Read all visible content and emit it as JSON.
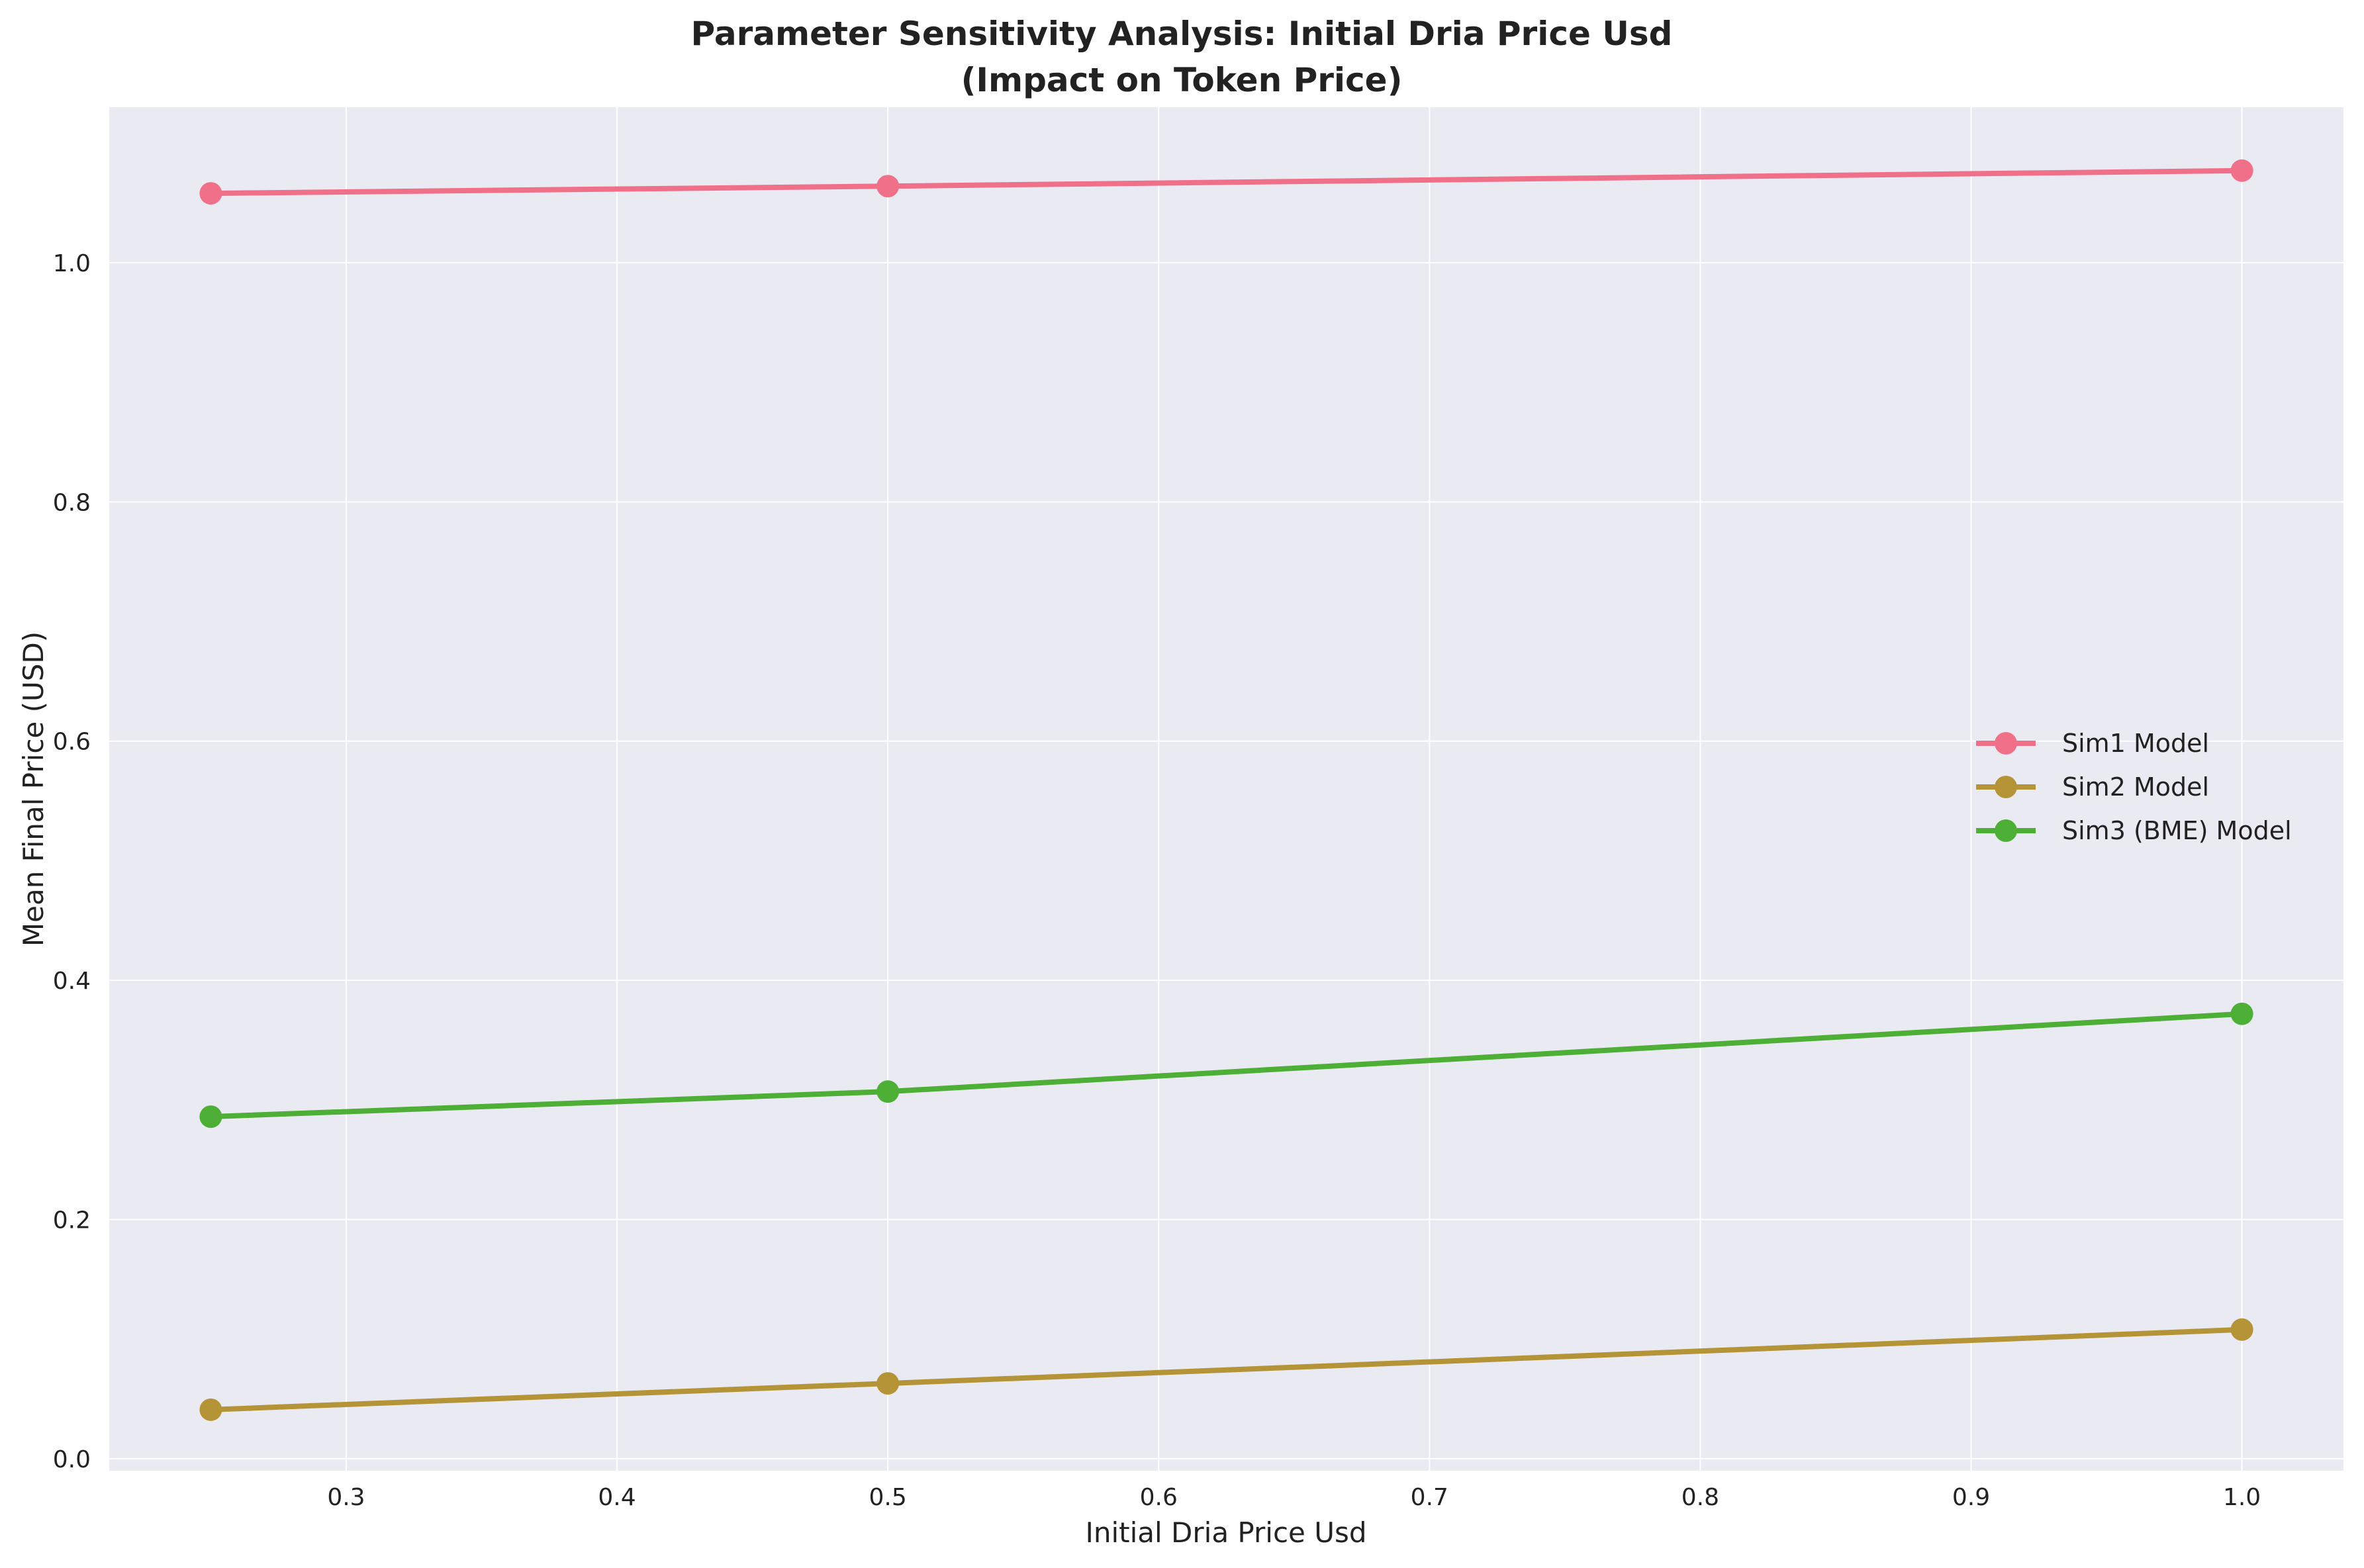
{
  "chart_data": {
    "type": "line",
    "title": "Parameter Sensitivity Analysis: Initial Dria Price Usd",
    "subtitle": "(Impact on Token Price)",
    "xlabel": "Initial Dria Price Usd",
    "ylabel": "Mean Final Price (USD)",
    "x": [
      0.25,
      0.5,
      1.0
    ],
    "xlim": [
      0.2125,
      1.0375
    ],
    "ylim": [
      -0.01,
      1.13
    ],
    "xticks": [
      "0.3",
      "0.4",
      "0.5",
      "0.6",
      "0.7",
      "0.8",
      "0.9",
      "1.0"
    ],
    "yticks": [
      "0.0",
      "0.2",
      "0.4",
      "0.6",
      "0.8",
      "1.0"
    ],
    "grid": true,
    "legend_position": "center-right",
    "series": [
      {
        "name": "Sim1 Model",
        "color": "#f0708a",
        "values": [
          1.058,
          1.064,
          1.077
        ]
      },
      {
        "name": "Sim2 Model",
        "color": "#b59438",
        "values": [
          0.041,
          0.063,
          0.108
        ]
      },
      {
        "name": "Sim3 (BME) Model",
        "color": "#4daf35",
        "values": [
          0.286,
          0.307,
          0.372
        ]
      }
    ]
  }
}
